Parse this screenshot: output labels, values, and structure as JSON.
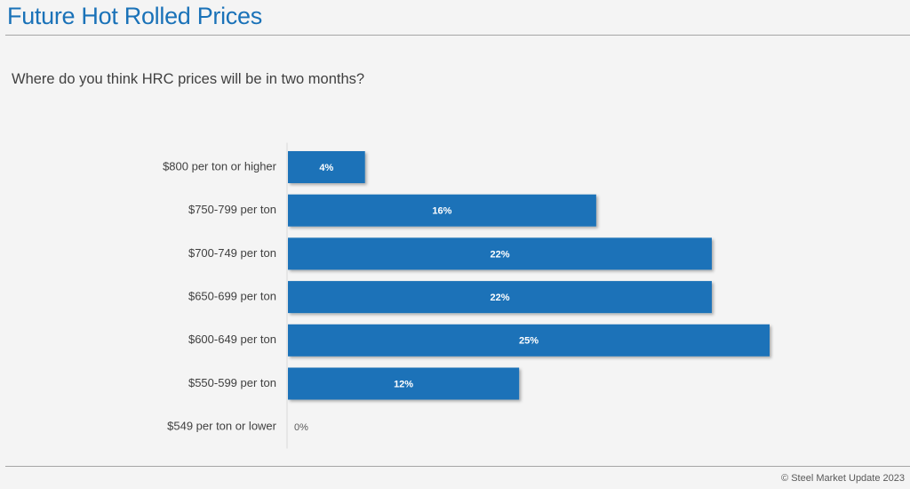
{
  "header": {
    "title": "Future Hot Rolled Prices",
    "question": "Where do you think HRC prices will be in two months?"
  },
  "footer": {
    "copyright": "© Steel Market Update 2023"
  },
  "colors": {
    "bar": "#1a72b8",
    "title": "#1a72b8"
  },
  "chart_data": {
    "type": "bar",
    "orientation": "horizontal",
    "title": "",
    "xlabel": "",
    "ylabel": "",
    "categories": [
      "$800 per ton or higher",
      "$750-799 per ton",
      "$700-749 per ton",
      "$650-699 per ton",
      "$600-649 per ton",
      "$550-599 per ton",
      "$549 per ton or lower"
    ],
    "values": [
      4,
      16,
      22,
      22,
      25,
      12,
      0
    ],
    "value_labels": [
      "4%",
      "16%",
      "22%",
      "22%",
      "25%",
      "12%",
      "0%"
    ],
    "unit": "%",
    "xlim": [
      0,
      25
    ],
    "grid": false,
    "legend": "none"
  }
}
